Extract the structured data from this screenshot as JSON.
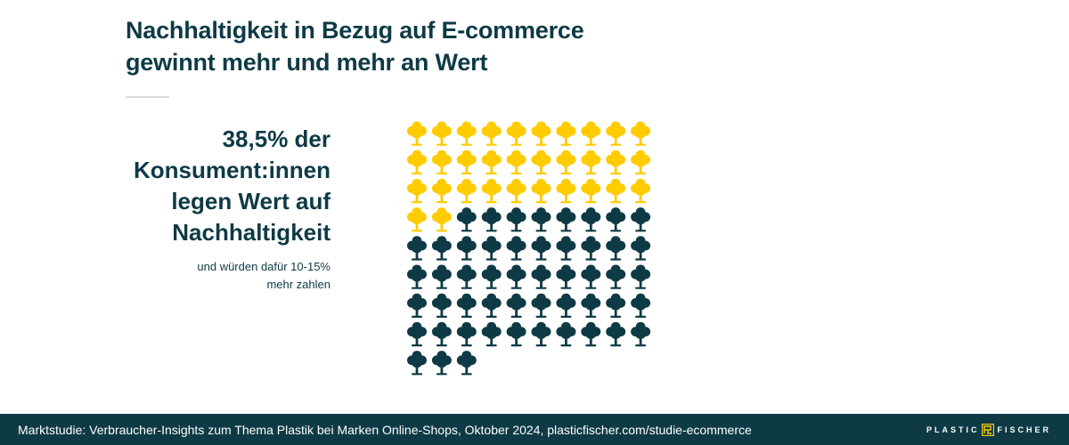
{
  "title": {
    "line1": "Nachhaltigkeit in Bezug auf E-commerce",
    "line2": "gewinnt mehr und mehr an Wert"
  },
  "stat": {
    "line1": "38,5% der",
    "line2": "Konsument:innen",
    "line3": "legen Wert auf",
    "line4": "Nachhaltigkeit"
  },
  "substat": {
    "line1": "und würden dafür 10-15%",
    "line2": "mehr zahlen"
  },
  "chart_data": {
    "type": "pictogram",
    "icon": "tree-icon",
    "total": 83,
    "highlighted": 32,
    "columns": 10,
    "colors": {
      "highlighted": "#ffcc00",
      "rest": "#0e3a45"
    }
  },
  "footer": {
    "source": "Marktstudie: Verbraucher-Insights zum Thema Plastik bei Marken Online-Shops, Oktober 2024, plasticfischer.com/studie-ecommerce",
    "logo_left": "PLASTIC",
    "logo_right": "FISCHER"
  },
  "colors": {
    "brand_dark": "#0e3a45",
    "accent_yellow": "#ffcc00"
  }
}
